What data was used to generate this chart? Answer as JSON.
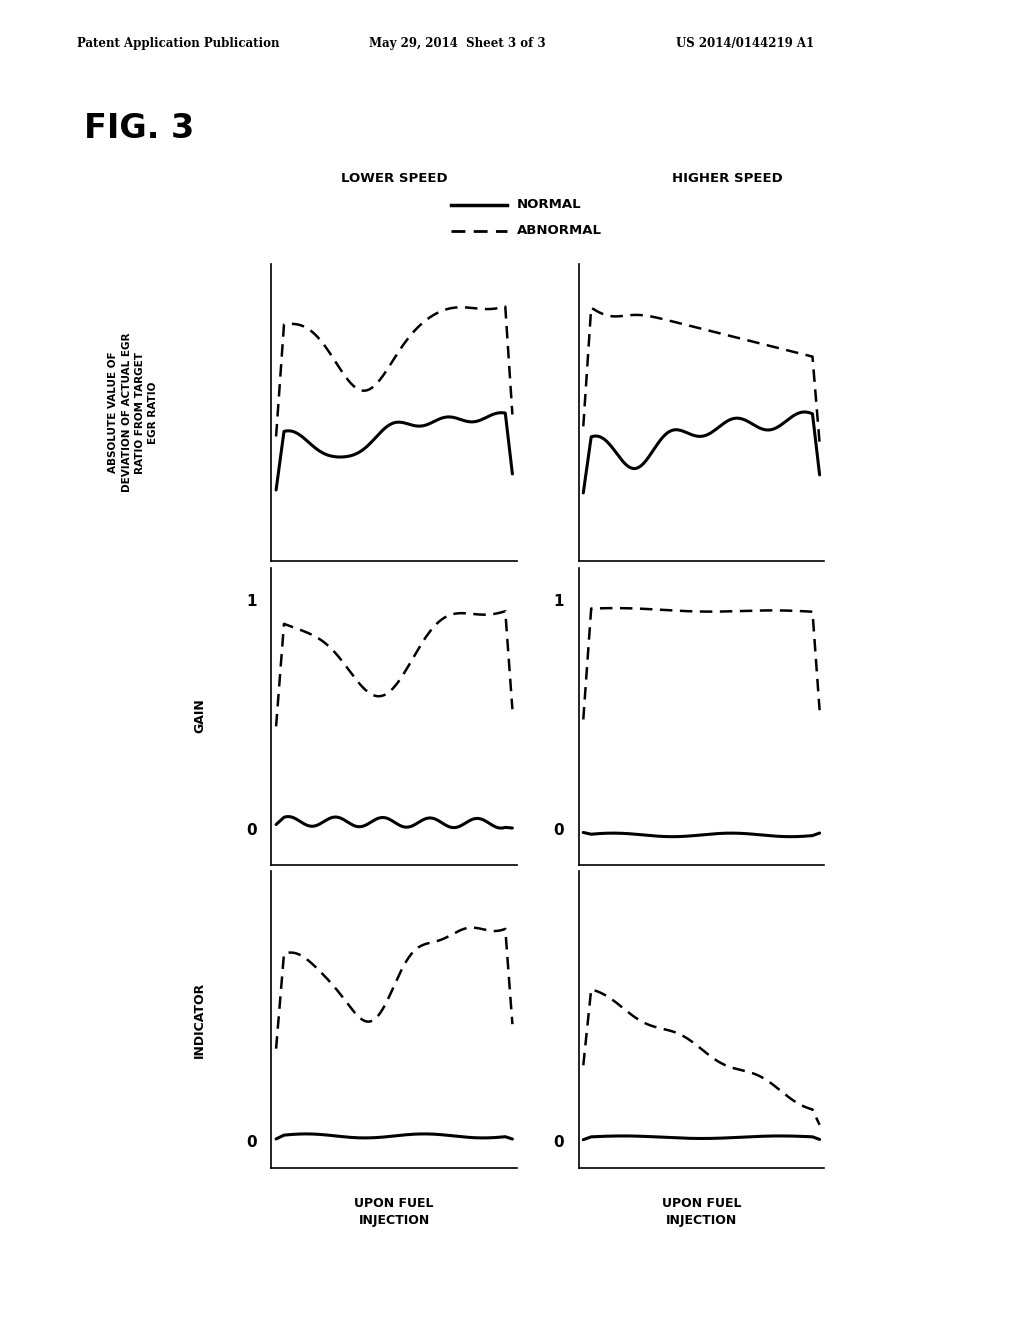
{
  "header_left": "Patent Application Publication",
  "header_mid": "May 29, 2014  Sheet 3 of 3",
  "header_right": "US 2014/0144219 A1",
  "fig_label": "FIG. 3",
  "col_labels": [
    "LOWER SPEED",
    "HIGHER SPEED"
  ],
  "row_label_0": "ABSOLUTE VALUE OF\nDEVIATION OF ACTUAL EGR\nRATIO FROM TARGET\nEGR RATIO",
  "row_label_1": "GAIN",
  "row_label_2": "INDICATOR",
  "legend_normal": "NORMAL",
  "legend_abnormal": "ABNORMAL",
  "xlabel": "UPON FUEL\nINJECTION",
  "background_color": "#ffffff"
}
